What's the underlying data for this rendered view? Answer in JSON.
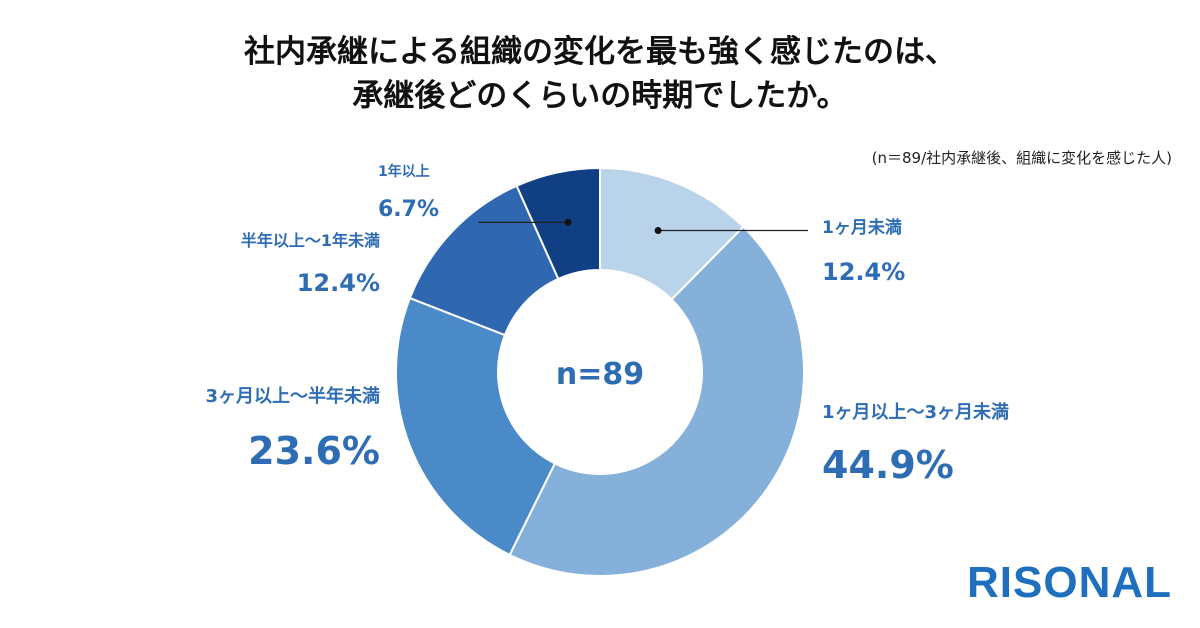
{
  "title": {
    "line1": "社内承継による組織の変化を最も強く感じたのは、",
    "line2": "承継後どのくらいの時期でしたか。"
  },
  "note": "(n＝89/社内承継後、組織に変化を感じた人)",
  "logo": "RISONAL",
  "chart_data": {
    "type": "pie",
    "variant": "donut",
    "center_label": "n=89",
    "slices": [
      {
        "label": "1ヶ月未満",
        "value": 12.4,
        "display": "12.4%",
        "color": "#b8d3ea"
      },
      {
        "label": "1ヶ月以上〜3ヶ月未満",
        "value": 44.9,
        "display": "44.9%",
        "color": "#84b0da"
      },
      {
        "label": "3ヶ月以上〜半年未満",
        "value": 23.6,
        "display": "23.6%",
        "color": "#4a8ac8"
      },
      {
        "label": "半年以上〜1年未満",
        "value": 12.4,
        "display": "12.4%",
        "color": "#2f68b0"
      },
      {
        "label": "1年以上",
        "value": 6.7,
        "display": "6.7%",
        "color": "#103f84"
      }
    ],
    "legend": "none"
  }
}
